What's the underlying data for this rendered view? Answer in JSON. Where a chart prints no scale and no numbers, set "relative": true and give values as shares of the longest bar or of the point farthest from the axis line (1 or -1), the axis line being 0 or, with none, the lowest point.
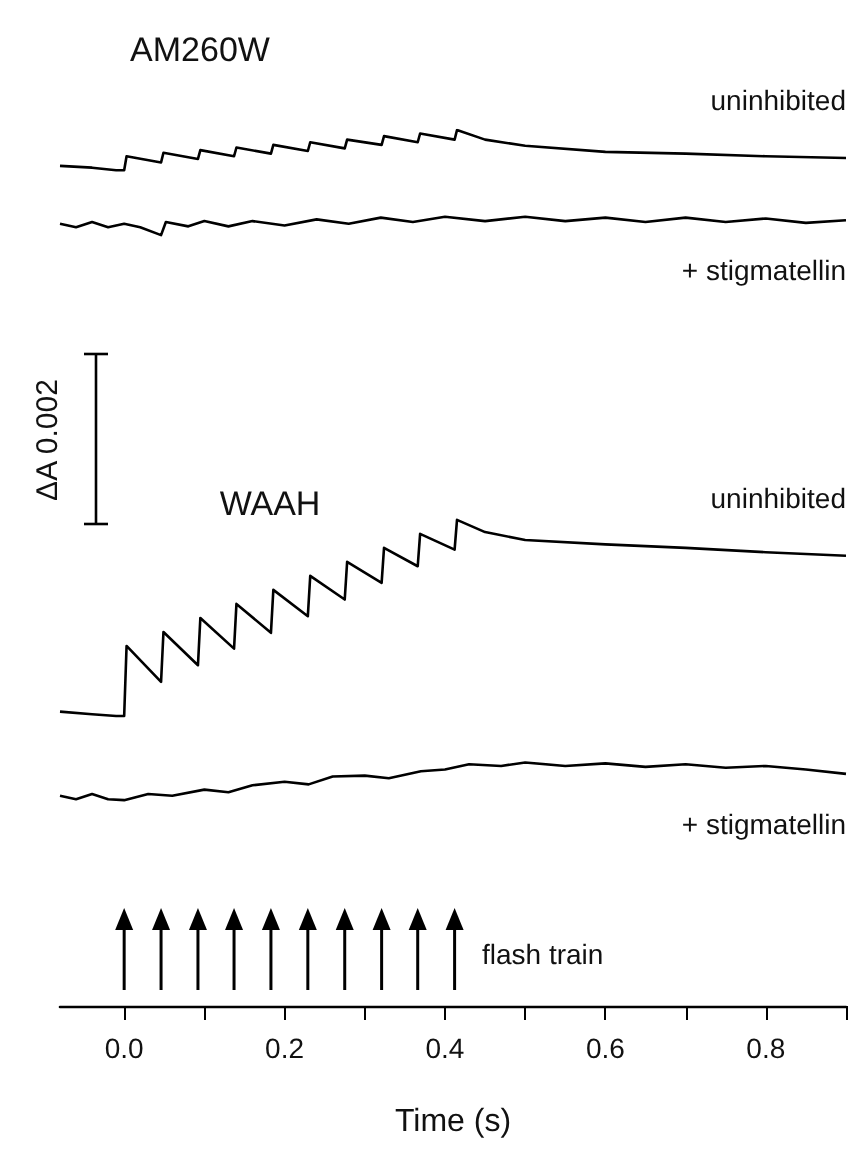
{
  "chart_data": {
    "type": "line",
    "relative": true,
    "marker": "none",
    "xlabel": "Time (s)",
    "annotations": [
      "AM260W",
      "WAAH",
      "ΔA 0.002",
      "flash train"
    ],
    "xlim": [
      -0.08,
      0.9
    ],
    "xticks": [
      {
        "value": 0,
        "label": "0.0"
      },
      {
        "value": 0.1,
        "label": null
      },
      {
        "value": 0.2,
        "label": "0.2"
      },
      {
        "value": 0.3,
        "label": null
      },
      {
        "value": 0.4,
        "label": "0.4"
      },
      {
        "value": 0.5,
        "label": null
      },
      {
        "value": 0.6,
        "label": "0.6"
      },
      {
        "value": 0.7,
        "label": null
      },
      {
        "value": 0.8,
        "label": "0.8"
      },
      {
        "value": 0.9,
        "label": null
      }
    ],
    "grid": false,
    "legend": false,
    "series": [
      {
        "name": "uninhibited",
        "color": "#000000",
        "x": [
          -0.08,
          -0.04,
          -0.01,
          0.0,
          0.003,
          0.046,
          0.049,
          0.092,
          0.095,
          0.137,
          0.14,
          0.183,
          0.186,
          0.229,
          0.232,
          0.275,
          0.278,
          0.321,
          0.324,
          0.366,
          0.369,
          0.412,
          0.415,
          0.45,
          0.5,
          0.6,
          0.7,
          0.8,
          0.9
        ],
        "values": [
          0.959,
          0.957,
          0.954,
          0.954,
          0.97,
          0.963,
          0.974,
          0.967,
          0.977,
          0.97,
          0.98,
          0.973,
          0.983,
          0.976,
          0.986,
          0.979,
          0.989,
          0.983,
          0.993,
          0.986,
          0.996,
          0.989,
          1.0,
          0.989,
          0.982,
          0.975,
          0.973,
          0.97,
          0.968
        ]
      },
      {
        "name": "+ stigmatellin",
        "color": "#000000",
        "x": [
          -0.08,
          -0.06,
          -0.04,
          -0.02,
          0.0,
          0.02,
          0.046,
          0.052,
          0.08,
          0.1,
          0.13,
          0.16,
          0.2,
          0.24,
          0.28,
          0.32,
          0.36,
          0.4,
          0.45,
          0.5,
          0.55,
          0.6,
          0.65,
          0.7,
          0.75,
          0.8,
          0.85,
          0.9
        ],
        "values": [
          0.893,
          0.889,
          0.895,
          0.889,
          0.893,
          0.889,
          0.88,
          0.895,
          0.89,
          0.896,
          0.89,
          0.896,
          0.891,
          0.898,
          0.893,
          0.9,
          0.895,
          0.901,
          0.896,
          0.901,
          0.896,
          0.9,
          0.895,
          0.9,
          0.895,
          0.899,
          0.894,
          0.897
        ]
      },
      {
        "name": "uninhibited",
        "color": "#000000",
        "x": [
          -0.08,
          -0.04,
          -0.01,
          0.0,
          0.003,
          0.046,
          0.049,
          0.092,
          0.095,
          0.137,
          0.14,
          0.183,
          0.186,
          0.229,
          0.232,
          0.275,
          0.278,
          0.321,
          0.324,
          0.366,
          0.369,
          0.412,
          0.415,
          0.45,
          0.5,
          0.6,
          0.7,
          0.8,
          0.9
        ],
        "values": [
          0.336,
          0.333,
          0.331,
          0.331,
          0.411,
          0.37,
          0.427,
          0.389,
          0.443,
          0.408,
          0.459,
          0.426,
          0.475,
          0.445,
          0.491,
          0.464,
          0.507,
          0.483,
          0.523,
          0.502,
          0.539,
          0.521,
          0.555,
          0.541,
          0.532,
          0.527,
          0.523,
          0.518,
          0.514
        ]
      },
      {
        "name": "+ stigmatellin",
        "color": "#000000",
        "x": [
          -0.08,
          -0.06,
          -0.04,
          -0.02,
          0.0,
          0.03,
          0.06,
          0.1,
          0.13,
          0.16,
          0.2,
          0.23,
          0.26,
          0.3,
          0.33,
          0.37,
          0.4,
          0.43,
          0.47,
          0.5,
          0.55,
          0.6,
          0.65,
          0.7,
          0.75,
          0.8,
          0.85,
          0.9
        ],
        "values": [
          0.24,
          0.236,
          0.242,
          0.236,
          0.235,
          0.242,
          0.24,
          0.247,
          0.244,
          0.252,
          0.256,
          0.253,
          0.262,
          0.263,
          0.26,
          0.268,
          0.27,
          0.276,
          0.274,
          0.278,
          0.274,
          0.277,
          0.273,
          0.276,
          0.272,
          0.274,
          0.27,
          0.265
        ]
      }
    ]
  }
}
